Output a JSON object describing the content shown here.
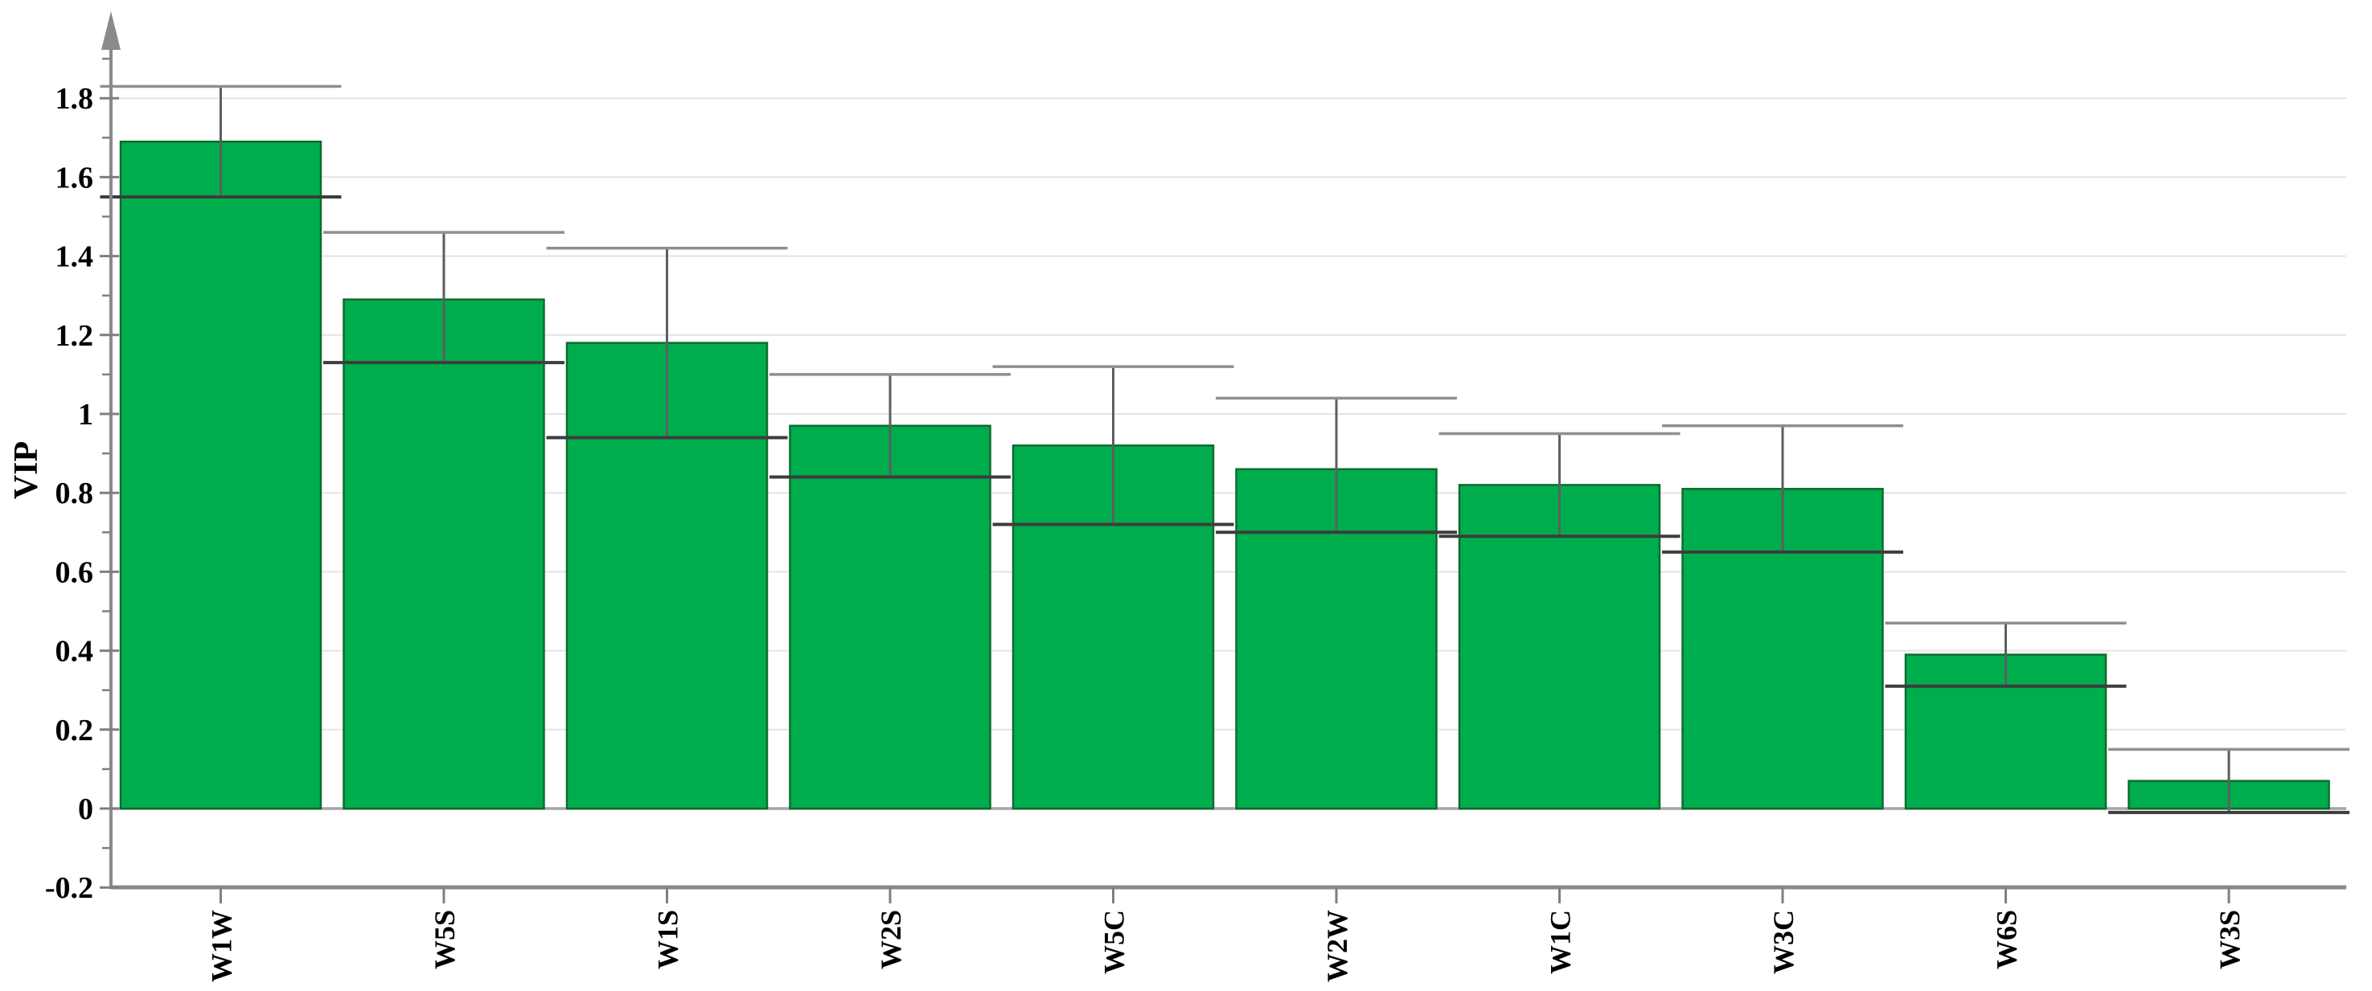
{
  "chart_data": {
    "type": "bar",
    "title": "",
    "xlabel": "",
    "ylabel": "VIP",
    "categories": [
      "W1W",
      "W5S",
      "W1S",
      "W2S",
      "W5C",
      "W2W",
      "W1C",
      "W3C",
      "W6S",
      "W3S"
    ],
    "series": [
      {
        "name": "VIP",
        "values": [
          1.69,
          1.29,
          1.18,
          0.97,
          0.92,
          0.86,
          0.82,
          0.81,
          0.39,
          0.07
        ],
        "error_low": [
          1.55,
          1.13,
          0.94,
          0.84,
          0.72,
          0.7,
          0.69,
          0.65,
          0.31,
          -0.01
        ],
        "error_high": [
          1.83,
          1.46,
          1.42,
          1.1,
          1.12,
          1.04,
          0.95,
          0.97,
          0.47,
          0.15
        ]
      }
    ],
    "ylim": [
      -0.2,
      1.95
    ],
    "y_ticks": [
      {
        "v": 1.8,
        "label": "1.8"
      },
      {
        "v": 1.6,
        "label": "1.6"
      },
      {
        "v": 1.4,
        "label": "1.4"
      },
      {
        "v": 1.2,
        "label": "1.2"
      },
      {
        "v": 1.0,
        "label": "1"
      },
      {
        "v": 0.8,
        "label": "0.8"
      },
      {
        "v": 0.6,
        "label": "0.6"
      },
      {
        "v": 0.4,
        "label": "0.4"
      },
      {
        "v": 0.2,
        "label": "0.2"
      },
      {
        "v": 0.0,
        "label": "0"
      },
      {
        "v": -0.2,
        "label": "-0.2"
      }
    ],
    "minor_tick_step": 0.1,
    "grid": true,
    "legend": "none",
    "bar_orientation": "vertical",
    "x_label_rotation_deg": -90,
    "colors": {
      "bar_fill": "#00AD4D",
      "bar_stroke": "#0F6B2F",
      "error_line": "#5E5E5E",
      "error_cap_top": "#8F8F8F",
      "error_cap_bottom": "#3D3D3D",
      "gridline": "#E4E4E4",
      "zero_line": "#A6A6A6",
      "axis": "#8A8A8A",
      "tick": "#7F7F7F",
      "text": "#000000"
    }
  }
}
